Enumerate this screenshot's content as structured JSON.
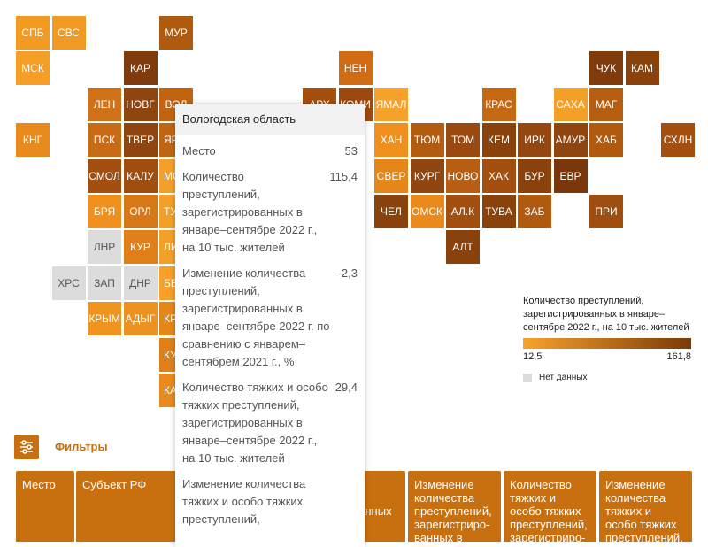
{
  "map": {
    "tiles": [
      {
        "label": "СПБ",
        "color": "#f29a22"
      },
      {
        "label": "СВС",
        "color": "#f09a24"
      },
      {
        "label": "МУР",
        "color": "#b05a10"
      },
      {
        "label": "МСК",
        "color": "#f59d25"
      },
      {
        "label": "КАР",
        "color": "#7f3b0c"
      },
      {
        "label": "НЕН",
        "color": "#d06d14"
      },
      {
        "label": "ЧУК",
        "color": "#7f3b0c"
      },
      {
        "label": "КАМ",
        "color": "#8a420d"
      },
      {
        "label": "ЛЕН",
        "color": "#d0721a"
      },
      {
        "label": "НОВГ",
        "color": "#8f4510"
      },
      {
        "label": "ВОЛ",
        "color": "#c06412"
      },
      {
        "label": "АРХ",
        "color": "#a24f10"
      },
      {
        "label": "КОМИ",
        "color": "#9a4a10"
      },
      {
        "label": "ЯМАЛ",
        "color": "#f5a12a"
      },
      {
        "label": "КРАС",
        "color": "#c46814"
      },
      {
        "label": "САХА",
        "color": "#f2a028"
      },
      {
        "label": "МАГ",
        "color": "#b55e12"
      },
      {
        "label": "КНГ",
        "color": "#e98a1c"
      },
      {
        "label": "ПСК",
        "color": "#c96b16"
      },
      {
        "label": "ТВЕР",
        "color": "#8f4510"
      },
      {
        "label": "ЯР",
        "color": "#c06512"
      },
      {
        "label": "ХАН",
        "color": "#ee8f1e"
      },
      {
        "label": "ТЮМ",
        "color": "#b25c12"
      },
      {
        "label": "ТОМ",
        "color": "#9a4a10"
      },
      {
        "label": "КЕМ",
        "color": "#8a420d"
      },
      {
        "label": "ИРК",
        "color": "#944710"
      },
      {
        "label": "АМУР",
        "color": "#8f4510"
      },
      {
        "label": "ХАБ",
        "color": "#b05a10"
      },
      {
        "label": "СХЛН",
        "color": "#a24f10"
      },
      {
        "label": "СМОЛ",
        "color": "#a24f10"
      },
      {
        "label": "КАЛУ",
        "color": "#a04e10"
      },
      {
        "label": "МО",
        "color": "#f3a02a"
      },
      {
        "label": "СВЕР",
        "color": "#e58618"
      },
      {
        "label": "КУРГ",
        "color": "#914510"
      },
      {
        "label": "НОВО",
        "color": "#b75e12"
      },
      {
        "label": "ХАК",
        "color": "#a24f10"
      },
      {
        "label": "БУР",
        "color": "#8a420d"
      },
      {
        "label": "ЕВР",
        "color": "#7a370a"
      },
      {
        "label": "БРЯ",
        "color": "#ee8f1e"
      },
      {
        "label": "ОРЛ",
        "color": "#d67818"
      },
      {
        "label": "ТУ",
        "color": "#f2a028"
      },
      {
        "label": "ЧЕЛ",
        "color": "#8a420d"
      },
      {
        "label": "ОМСК",
        "color": "#ea8a1c"
      },
      {
        "label": "АЛ.К",
        "color": "#a24f10"
      },
      {
        "label": "ТУВА",
        "color": "#8a420d"
      },
      {
        "label": "ЗАБ",
        "color": "#b05a10"
      },
      {
        "label": "ПРИ",
        "color": "#a04e10"
      },
      {
        "label": "ЛНР",
        "color": "#dcdcdc"
      },
      {
        "label": "КУР",
        "color": "#e07f18"
      },
      {
        "label": "ЛИ",
        "color": "#f2a028"
      },
      {
        "label": "АЛТ",
        "color": "#8a420d"
      },
      {
        "label": "ХРС",
        "color": "#dcdcdc"
      },
      {
        "label": "ЗАП",
        "color": "#dcdcdc"
      },
      {
        "label": "ДНР",
        "color": "#dcdcdc"
      },
      {
        "label": "БЕ",
        "color": "#f5a12a"
      },
      {
        "label": "КРЫМ",
        "color": "#f09420"
      },
      {
        "label": "АДЫГ",
        "color": "#ec9220"
      },
      {
        "label": "КР",
        "color": "#e58618"
      },
      {
        "label": "КУ",
        "color": "#e08018"
      },
      {
        "label": "КА",
        "color": "#ea8a1c"
      }
    ],
    "no_data_color": "#dcdcdc"
  },
  "legend": {
    "title": "Количество преступлений, зарегистрированных в январе–сентябре 2022 г., на 10 тыс. жителей",
    "min": "12,5",
    "max": "161,8",
    "colors": [
      "#f7a32c",
      "#7a3a0a"
    ],
    "no_data": "Нет данных"
  },
  "filters": {
    "label": "Фильтры"
  },
  "table": {
    "header": [
      "Место",
      "Субъект РФ",
      "Количество преступлений, зарегистриро-ванных в",
      "Изменение количества преступлений, зарегистриро-ванных в",
      "Количество тяжких и особо тяжких преступлений, зарегистриро-",
      "Изменение количества тяжких и особо тяжких преступлений,"
    ]
  },
  "tooltip": {
    "title": "Вологодская область",
    "rows": [
      {
        "label": [
          "Место"
        ],
        "value": "53"
      },
      {
        "label": [
          "Количество",
          "преступлений,",
          "зарегистрированных в",
          "январе–сентябре 2022 г.,",
          "на 10 тыс. жителей"
        ],
        "value": "115,4"
      },
      {
        "label": [
          "Изменение количества",
          "преступлений,",
          "зарегистрированных в",
          "январе–сентябре 2022 г. по",
          "сравнению с январем–",
          "сентябрем 2021 г., %"
        ],
        "value": "-2,3"
      },
      {
        "label": [
          "Количество тяжких и особо",
          "тяжких преступлений,",
          "зарегистрированных в",
          "январе–сентябре 2022 г.,",
          "на 10 тыс. жителей"
        ],
        "value": "29,4"
      },
      {
        "label": [
          "Изменение количества",
          "тяжких и особо тяжких",
          "преступлений,"
        ],
        "value": null
      }
    ]
  }
}
